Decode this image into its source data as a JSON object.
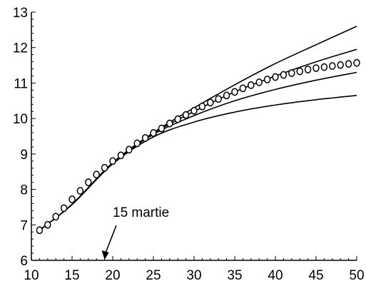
{
  "chart_data": {
    "type": "line",
    "title": "",
    "xlabel": "",
    "ylabel": "",
    "xlim": [
      10,
      50
    ],
    "ylim": [
      6,
      13
    ],
    "x_ticks": [
      10,
      15,
      20,
      25,
      30,
      35,
      40,
      45,
      50
    ],
    "y_ticks": [
      6,
      7,
      8,
      9,
      10,
      11,
      12,
      13
    ],
    "grid": false,
    "legend": "none",
    "annotation": {
      "text": "15 martie",
      "x": 19
    },
    "series": [
      {
        "style": "line",
        "x": [
          11,
          15,
          20,
          25,
          30,
          35,
          40,
          45,
          50
        ],
        "y": [
          6.85,
          7.58,
          8.75,
          9.6,
          10.3,
          10.95,
          11.55,
          12.08,
          12.6
        ]
      },
      {
        "style": "line",
        "x": [
          11,
          15,
          20,
          25,
          30,
          35,
          40,
          45,
          50
        ],
        "y": [
          6.85,
          7.58,
          8.75,
          9.58,
          10.2,
          10.75,
          11.2,
          11.6,
          11.95
        ]
      },
      {
        "style": "line",
        "x": [
          11,
          15,
          20,
          25,
          30,
          35,
          40,
          45,
          50
        ],
        "y": [
          6.85,
          7.58,
          8.74,
          9.55,
          10.08,
          10.5,
          10.82,
          11.08,
          11.3
        ]
      },
      {
        "style": "line",
        "x": [
          11,
          15,
          20,
          25,
          30,
          35,
          40,
          45,
          50
        ],
        "y": [
          6.85,
          7.57,
          8.72,
          9.48,
          9.9,
          10.18,
          10.38,
          10.53,
          10.65
        ]
      },
      {
        "style": "markers",
        "x": [
          11,
          12,
          13,
          14,
          15,
          16,
          17,
          18,
          19,
          20,
          21,
          22,
          23,
          24,
          25,
          26,
          27,
          28,
          29,
          30,
          31,
          32,
          33,
          34,
          35,
          36,
          37,
          38,
          39,
          40,
          41,
          42,
          43,
          44,
          45,
          46,
          47,
          48,
          49,
          50
        ],
        "y": [
          6.85,
          7.0,
          7.23,
          7.47,
          7.72,
          7.96,
          8.2,
          8.42,
          8.61,
          8.8,
          8.96,
          9.12,
          9.3,
          9.45,
          9.59,
          9.72,
          9.86,
          9.98,
          10.1,
          10.22,
          10.34,
          10.45,
          10.55,
          10.65,
          10.75,
          10.85,
          10.94,
          11.02,
          11.1,
          11.17,
          11.23,
          11.28,
          11.33,
          11.38,
          11.42,
          11.45,
          11.48,
          11.51,
          11.54,
          11.57
        ]
      }
    ]
  }
}
